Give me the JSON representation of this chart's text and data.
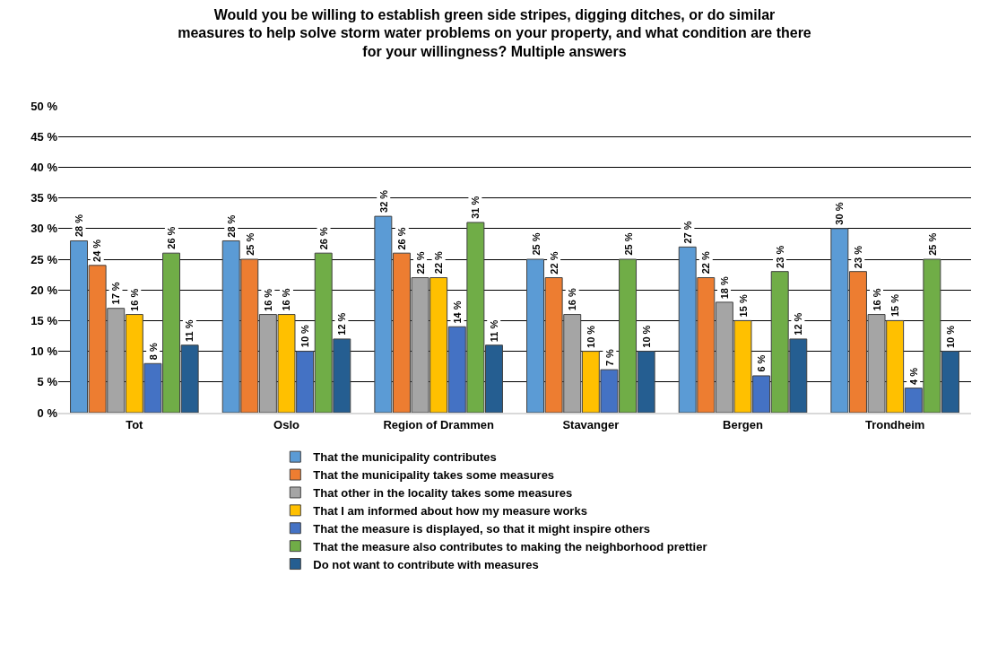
{
  "chart_data": {
    "type": "bar",
    "title": "Would you be willing to establish green side stripes, digging ditches, or do similar measures to help solve storm water problems on your property, and what condition are there for your willingness? Multiple answers",
    "categories": [
      "Tot",
      "Oslo",
      "Region of Drammen",
      "Stavanger",
      "Bergen",
      "Trondheim"
    ],
    "series": [
      {
        "name": "That the municipality contributes",
        "color": "#5b9bd5",
        "values": [
          28,
          28,
          32,
          25,
          27,
          30
        ],
        "value_labels": [
          "28 %",
          "28 %",
          "32 %",
          "25 %",
          "27 %",
          "30 %"
        ]
      },
      {
        "name": "That the municipality takes some measures",
        "color": "#ed7d31",
        "values": [
          24,
          25,
          26,
          22,
          22,
          23
        ],
        "value_labels": [
          "24 %",
          "25 %",
          "26 %",
          "22 %",
          "22 %",
          "23 %"
        ]
      },
      {
        "name": "That other in the locality takes some measures",
        "color": "#a5a5a5",
        "values": [
          17,
          16,
          22,
          16,
          18,
          16
        ],
        "value_labels": [
          "17 %",
          "16 %",
          "22 %",
          "16 %",
          "18 %",
          "16 %"
        ]
      },
      {
        "name": "That I am informed about how my measure works",
        "color": "#ffc000",
        "values": [
          16,
          16,
          22,
          10,
          15,
          15
        ],
        "value_labels": [
          "16 %",
          "16 %",
          "22 %",
          "10 %",
          "15 %",
          "15 %"
        ]
      },
      {
        "name": "That the measure is displayed, so that it might inspire others",
        "color": "#4472c4",
        "values": [
          8,
          10,
          14,
          7,
          6,
          4
        ],
        "value_labels": [
          "8 %",
          "10 %",
          "14 %",
          "7 %",
          "6 %",
          "4 %"
        ]
      },
      {
        "name": "That the measure also contributes to making the neighborhood prettier",
        "color": "#70ad47",
        "values": [
          26,
          26,
          31,
          25,
          23,
          25
        ],
        "value_labels": [
          "26 %",
          "26 %",
          "31 %",
          "25 %",
          "23 %",
          "25 %"
        ]
      },
      {
        "name": "Do not want to contribute with measures",
        "color": "#255e91",
        "values": [
          11,
          12,
          11,
          10,
          12,
          10
        ],
        "value_labels": [
          "11 %",
          "12 %",
          "11 %",
          "10 %",
          "12 %",
          "10 %"
        ]
      }
    ],
    "ylim": [
      0,
      50
    ],
    "yticks": [
      {
        "value": 0,
        "label": "0 %"
      },
      {
        "value": 5,
        "label": "5 %"
      },
      {
        "value": 10,
        "label": "10 %"
      },
      {
        "value": 15,
        "label": "15 %"
      },
      {
        "value": 20,
        "label": "20 %"
      },
      {
        "value": 25,
        "label": "25 %"
      },
      {
        "value": 30,
        "label": "30 %"
      },
      {
        "value": 35,
        "label": "35 %"
      },
      {
        "value": 40,
        "label": "40 %"
      },
      {
        "value": 45,
        "label": "45 %"
      },
      {
        "value": 50,
        "label": "50 %"
      }
    ],
    "grid": "y",
    "legend": "bottom"
  }
}
